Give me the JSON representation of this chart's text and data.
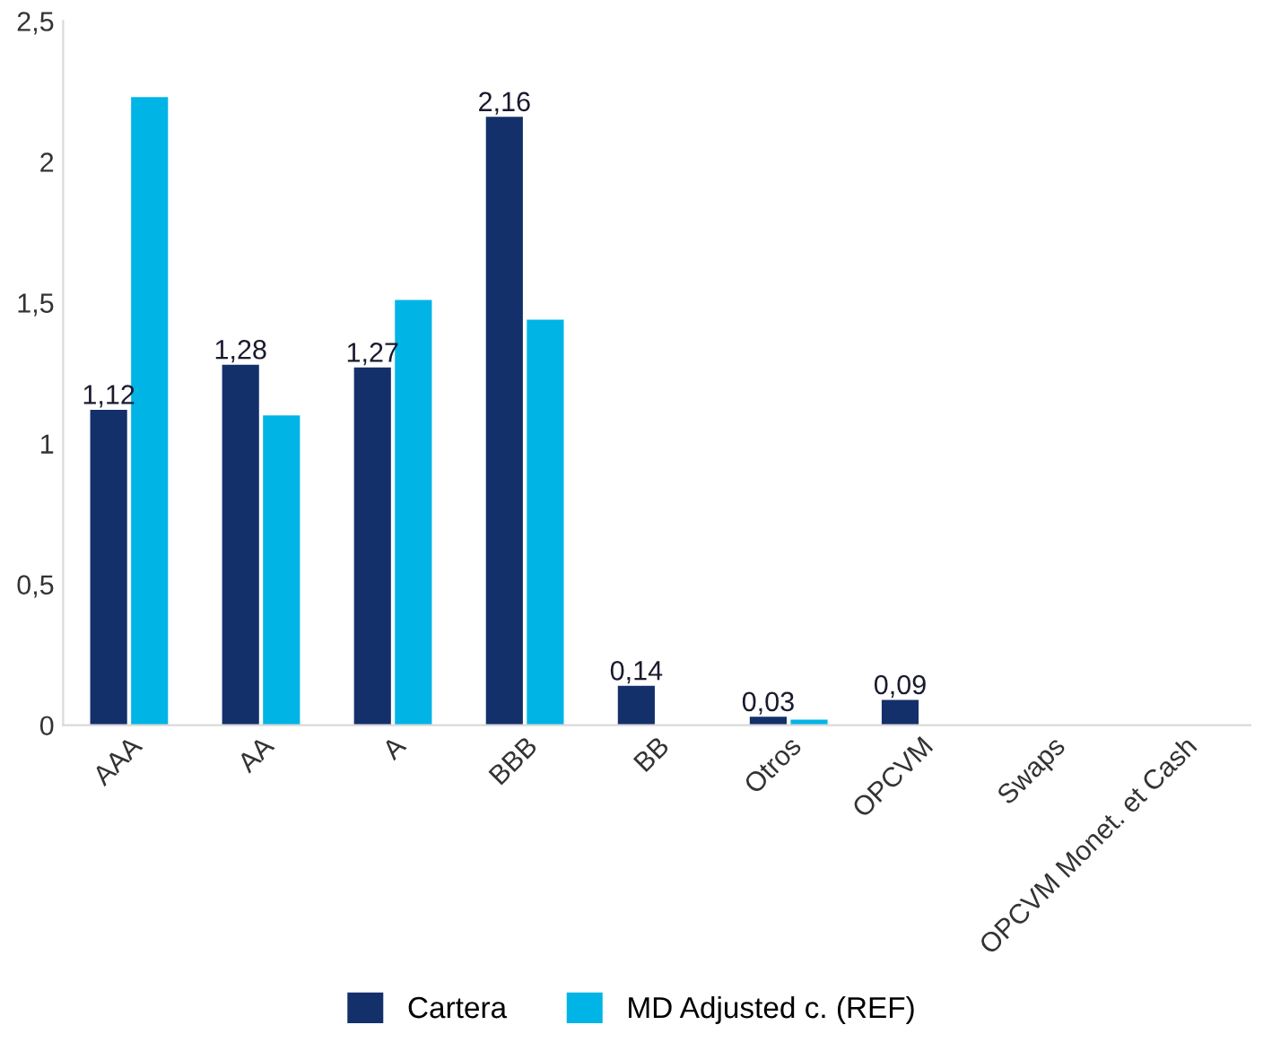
{
  "chart_data": {
    "type": "bar",
    "categories": [
      "AAA",
      "AA",
      "A",
      "BBB",
      "BB",
      "Otros",
      "OPCVM",
      "Swaps",
      "OPCVM Monet. et Cash"
    ],
    "series": [
      {
        "name": "Cartera",
        "color": "#14306b",
        "values": [
          1.12,
          1.28,
          1.27,
          2.16,
          0.14,
          0.03,
          0.09,
          null,
          null
        ],
        "value_labels": [
          "1,12",
          "1,28",
          "1,27",
          "2,16",
          "0,14",
          "0,03",
          "0,09",
          null,
          null
        ]
      },
      {
        "name": "MD Adjusted c. (REF)",
        "color": "#00b4e6",
        "values": [
          2.23,
          1.1,
          1.51,
          1.44,
          null,
          0.02,
          null,
          null,
          null
        ]
      }
    ],
    "ylim": [
      0,
      2.5
    ],
    "yticks": [
      0,
      {
        "value": 0.5,
        "label": "0,5"
      },
      1,
      {
        "value": 1.5,
        "label": "1,5"
      },
      2,
      {
        "value": 2.5,
        "label": "2,5"
      }
    ],
    "grid": false,
    "legend": "bottom"
  }
}
